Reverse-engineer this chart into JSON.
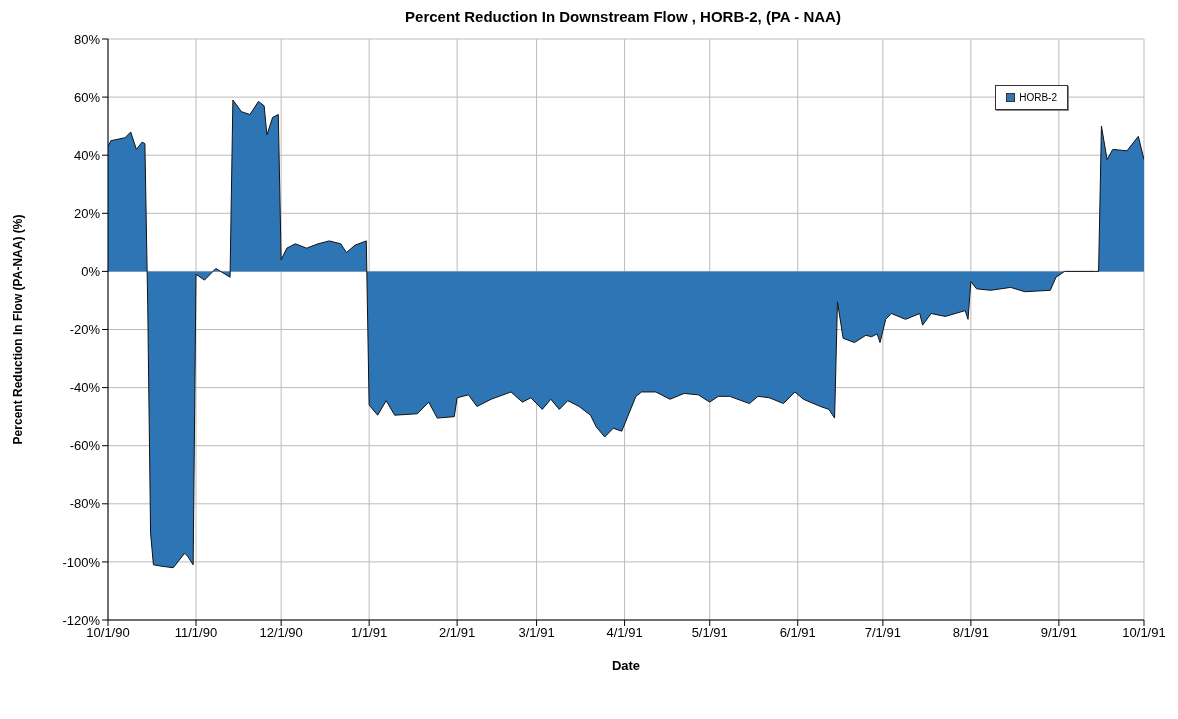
{
  "chart_data": {
    "type": "area",
    "title": "Percent Reduction In Downstream Flow , HORB-2,  (PA - NAA)",
    "xlabel": "Date",
    "ylabel": "Percent Reduction In Flow (PA-NAA) (%)",
    "x": [
      "1990-10-01",
      "1990-10-02",
      "1990-10-07",
      "1990-10-09",
      "1990-10-11",
      "1990-10-13",
      "1990-10-14",
      "1990-10-15",
      "1990-10-16",
      "1990-10-17",
      "1990-10-20",
      "1990-10-24",
      "1990-10-28",
      "1990-10-29",
      "1990-10-31",
      "1990-11-01",
      "1990-11-04",
      "1990-11-08",
      "1990-11-13",
      "1990-11-14",
      "1990-11-17",
      "1990-11-20",
      "1990-11-23",
      "1990-11-25",
      "1990-11-26",
      "1990-11-28",
      "1990-11-30",
      "1990-12-01",
      "1990-12-03",
      "1990-12-06",
      "1990-12-10",
      "1990-12-14",
      "1990-12-18",
      "1990-12-22",
      "1990-12-24",
      "1990-12-27",
      "1990-12-31",
      "1991-01-01",
      "1991-01-04",
      "1991-01-07",
      "1991-01-10",
      "1991-01-18",
      "1991-01-22",
      "1991-01-25",
      "1991-01-31",
      "1991-02-01",
      "1991-02-05",
      "1991-02-08",
      "1991-02-13",
      "1991-02-20",
      "1991-02-24",
      "1991-02-27",
      "1991-03-03",
      "1991-03-06",
      "1991-03-09",
      "1991-03-12",
      "1991-03-16",
      "1991-03-20",
      "1991-03-22",
      "1991-03-25",
      "1991-03-28",
      "1991-03-31",
      "1991-04-05",
      "1991-04-07",
      "1991-04-12",
      "1991-04-17",
      "1991-04-22",
      "1991-04-27",
      "1991-05-01",
      "1991-05-04",
      "1991-05-08",
      "1991-05-15",
      "1991-05-18",
      "1991-05-22",
      "1991-05-27",
      "1991-05-31",
      "1991-06-03",
      "1991-06-09",
      "1991-06-12",
      "1991-06-14",
      "1991-06-15",
      "1991-06-17",
      "1991-06-21",
      "1991-06-25",
      "1991-06-27",
      "1991-06-29",
      "1991-06-30",
      "1991-07-02",
      "1991-07-04",
      "1991-07-09",
      "1991-07-14",
      "1991-07-15",
      "1991-07-18",
      "1991-07-23",
      "1991-07-30",
      "1991-07-31",
      "1991-08-01",
      "1991-08-03",
      "1991-08-08",
      "1991-08-15",
      "1991-08-20",
      "1991-08-29",
      "1991-08-31",
      "1991-09-03",
      "1991-09-14",
      "1991-09-15",
      "1991-09-16",
      "1991-09-18",
      "1991-09-20",
      "1991-09-25",
      "1991-09-29",
      "1991-10-01"
    ],
    "series": [
      {
        "name": "HORB-2",
        "color": "#2e75b6",
        "values": [
          43,
          45,
          46,
          48,
          42,
          44.5,
          44,
          -12,
          -90,
          -101,
          -101.5,
          -102,
          -97,
          -98,
          -101,
          -1,
          -3,
          1,
          -2,
          59,
          55,
          54,
          58.5,
          57,
          47,
          53,
          54,
          4,
          8,
          9.5,
          8,
          9.5,
          10.5,
          9.5,
          6.5,
          9,
          10.5,
          -46,
          -49.5,
          -44.5,
          -49.5,
          -49,
          -45,
          -50.5,
          -50,
          -43.5,
          -42.5,
          -46.5,
          -44,
          -41.5,
          -45,
          -43.5,
          -47.5,
          -44,
          -47.5,
          -44.5,
          -46.5,
          -49.5,
          -53.5,
          -57,
          -54,
          -55,
          -43,
          -41.5,
          -41.5,
          -44,
          -42,
          -42.5,
          -45,
          -43,
          -43,
          -45.5,
          -43,
          -43.5,
          -45.5,
          -41.5,
          -44,
          -46.5,
          -47.5,
          -50.5,
          -10.5,
          -23,
          -24.5,
          -22,
          -22.5,
          -21.5,
          -24.5,
          -16.5,
          -14.5,
          -16.5,
          -14.5,
          -18.5,
          -14.5,
          -15.5,
          -13.5,
          -16.5,
          -3.5,
          -6,
          -6.5,
          -5.5,
          -7,
          -6.5,
          -2,
          0,
          0,
          0,
          50,
          38.5,
          42,
          41.5,
          46.5,
          38.5
        ]
      }
    ],
    "xlim": [
      "1990-10-01",
      "1991-10-01"
    ],
    "xticks": [
      {
        "value": "1990-10-01",
        "label": "10/1/90"
      },
      {
        "value": "1990-11-01",
        "label": "11/1/90"
      },
      {
        "value": "1990-12-01",
        "label": "12/1/90"
      },
      {
        "value": "1991-01-01",
        "label": "1/1/91"
      },
      {
        "value": "1991-02-01",
        "label": "2/1/91"
      },
      {
        "value": "1991-03-01",
        "label": "3/1/91"
      },
      {
        "value": "1991-04-01",
        "label": "4/1/91"
      },
      {
        "value": "1991-05-01",
        "label": "5/1/91"
      },
      {
        "value": "1991-06-01",
        "label": "6/1/91"
      },
      {
        "value": "1991-07-01",
        "label": "7/1/91"
      },
      {
        "value": "1991-08-01",
        "label": "8/1/91"
      },
      {
        "value": "1991-09-01",
        "label": "9/1/91"
      },
      {
        "value": "1991-10-01",
        "label": "10/1/91"
      }
    ],
    "ylim": [
      -120,
      80
    ],
    "yticks": [
      {
        "value": -120,
        "label": "-120%"
      },
      {
        "value": -100,
        "label": "-100%"
      },
      {
        "value": -80,
        "label": "-80%"
      },
      {
        "value": -60,
        "label": "-60%"
      },
      {
        "value": -40,
        "label": "-40%"
      },
      {
        "value": -20,
        "label": "-20%"
      },
      {
        "value": 0,
        "label": "0%"
      },
      {
        "value": 20,
        "label": "20%"
      },
      {
        "value": 40,
        "label": "40%"
      },
      {
        "value": 60,
        "label": "60%"
      },
      {
        "value": 80,
        "label": "80%"
      }
    ],
    "grid": true,
    "legend": "top right"
  }
}
